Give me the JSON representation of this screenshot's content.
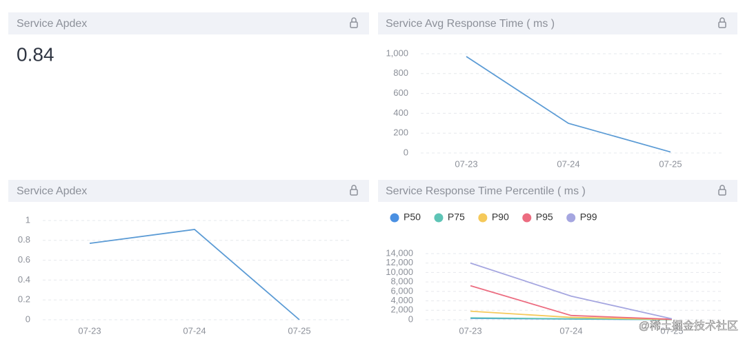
{
  "panels": [
    {
      "title": "Service Apdex",
      "value": 0.84
    },
    {
      "title": "Service Avg Response Time ( ms )",
      "chart_data": {
        "type": "line",
        "categories": [
          "07-23",
          "07-24",
          "07-25"
        ],
        "series": [
          {
            "color": "#5b9bd5",
            "values": [
              972,
              299,
              10
            ]
          }
        ],
        "ylim": [
          0,
          1000
        ],
        "yticks": [
          0,
          200,
          400,
          600,
          800,
          {
            "value": 1000,
            "label": "1,000"
          }
        ],
        "grid": true
      }
    },
    {
      "title": "Service Apdex",
      "chart_data": {
        "type": "line",
        "categories": [
          "07-23",
          "07-24",
          "07-25"
        ],
        "series": [
          {
            "color": "#5b9bd5",
            "values": [
              0.77,
              0.91,
              0
            ]
          }
        ],
        "ylim": [
          0,
          1
        ],
        "yticks": [
          0,
          0.2,
          0.4,
          0.6,
          0.8,
          1
        ],
        "grid": true
      }
    },
    {
      "title": "Service Response Time Percentile ( ms )",
      "chart_data": {
        "type": "line",
        "categories": [
          "07-23",
          "07-24",
          "07-25"
        ],
        "series": [
          {
            "name": "P50",
            "color": "#4a90e2",
            "values": [
              300,
              150,
              20
            ]
          },
          {
            "name": "P75",
            "color": "#5ec4b6",
            "values": [
              400,
              200,
              30
            ]
          },
          {
            "name": "P90",
            "color": "#f5c95a",
            "values": [
              1800,
              500,
              50
            ]
          },
          {
            "name": "P95",
            "color": "#ec6c80",
            "values": [
              7200,
              900,
              100
            ]
          },
          {
            "name": "P99",
            "color": "#a5a6e0",
            "values": [
              12000,
              5000,
              200
            ]
          }
        ],
        "ylim": [
          0,
          14000
        ],
        "yticks": [
          0,
          {
            "value": 2000,
            "label": "2,000"
          },
          {
            "value": 4000,
            "label": "4,000"
          },
          {
            "value": 6000,
            "label": "6,000"
          },
          {
            "value": 8000,
            "label": "8,000"
          },
          {
            "value": 10000,
            "label": "10,000"
          },
          {
            "value": 12000,
            "label": "12,000"
          },
          {
            "value": 14000,
            "label": "14,000"
          }
        ],
        "grid": true,
        "legend": "top-left"
      }
    }
  ],
  "watermark": "@稀土掘金技术社区"
}
